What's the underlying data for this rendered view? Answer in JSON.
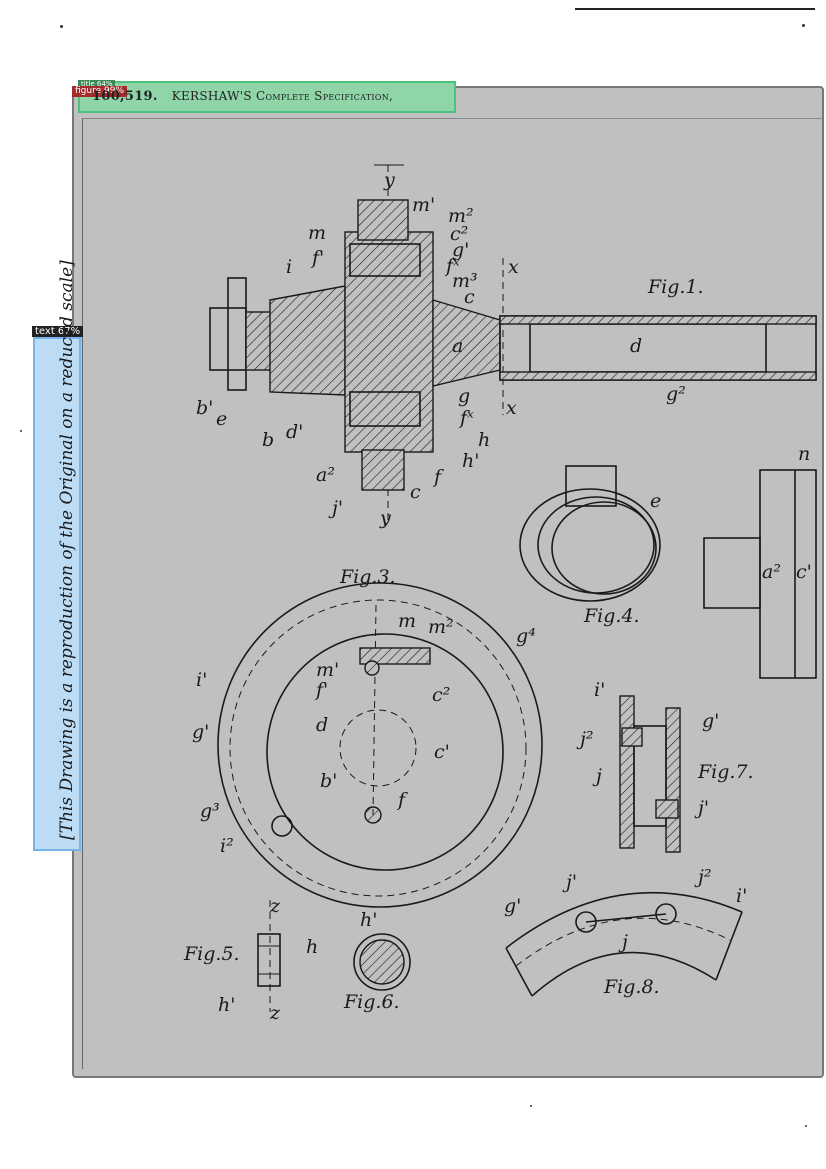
{
  "header": {
    "patent_number": "100,519.",
    "title": "KERSHAW'S Complete Specification,"
  },
  "detections": {
    "title_tag": "title 64%",
    "figure_tag": "figure 99%",
    "text_tag": "text 67%"
  },
  "side_note": "[This Drawing is a reproduction of the Original on a reduced scale]",
  "figures": {
    "fig1": "Fig.1.",
    "fig3": "Fig.3.",
    "fig4": "Fig.4.",
    "fig5": "Fig.5.",
    "fig6": "Fig.6.",
    "fig7": "Fig.7.",
    "fig8": "Fig.8."
  },
  "labels": {
    "y_top": "y",
    "m1": "m'",
    "m2": "m²",
    "m": "m",
    "c2": "c²",
    "g1": "g'",
    "f1": "f'",
    "fx": "fˣ",
    "m3": "m³",
    "x_top": "x",
    "i": "i",
    "c": "c",
    "a": "a",
    "d": "d",
    "b1": "b'",
    "e": "e",
    "b": "b",
    "d1": "d'",
    "g": "g",
    "fx2": "fˣ",
    "x_bot": "x",
    "g2": "g²",
    "h": "h",
    "h1": "h'",
    "a2": "a²",
    "f": "f",
    "c_low": "c",
    "j1": "j'",
    "y_bot": "y",
    "e4": "e",
    "n": "n",
    "a2r": "a²",
    "c1r": "c'",
    "f3_m": "m",
    "f3_m2": "m²",
    "f3_g4": "g⁴",
    "f3_i1": "i'",
    "f3_m1": "m'",
    "f3_f1": "f'",
    "f3_c2": "c²",
    "f3_g1": "g'",
    "f3_d": "d",
    "f3_c1": "c'",
    "f3_b": "b'",
    "f3_f": "f",
    "f3_g3": "g³",
    "f3_i2": "i²",
    "f7_i1": "i'",
    "f7_g1": "g'",
    "f7_j2": "j²",
    "f7_j": "j",
    "f7_j1": "j'",
    "f8_j1": "j'",
    "f8_j2": "j²",
    "f8_g1": "g'",
    "f8_i1": "i'",
    "f8_j": "j",
    "f5_z": "z",
    "f5_h": "h",
    "f5_h1": "h'",
    "f5_z2": "z",
    "f6_h1": "h'"
  }
}
